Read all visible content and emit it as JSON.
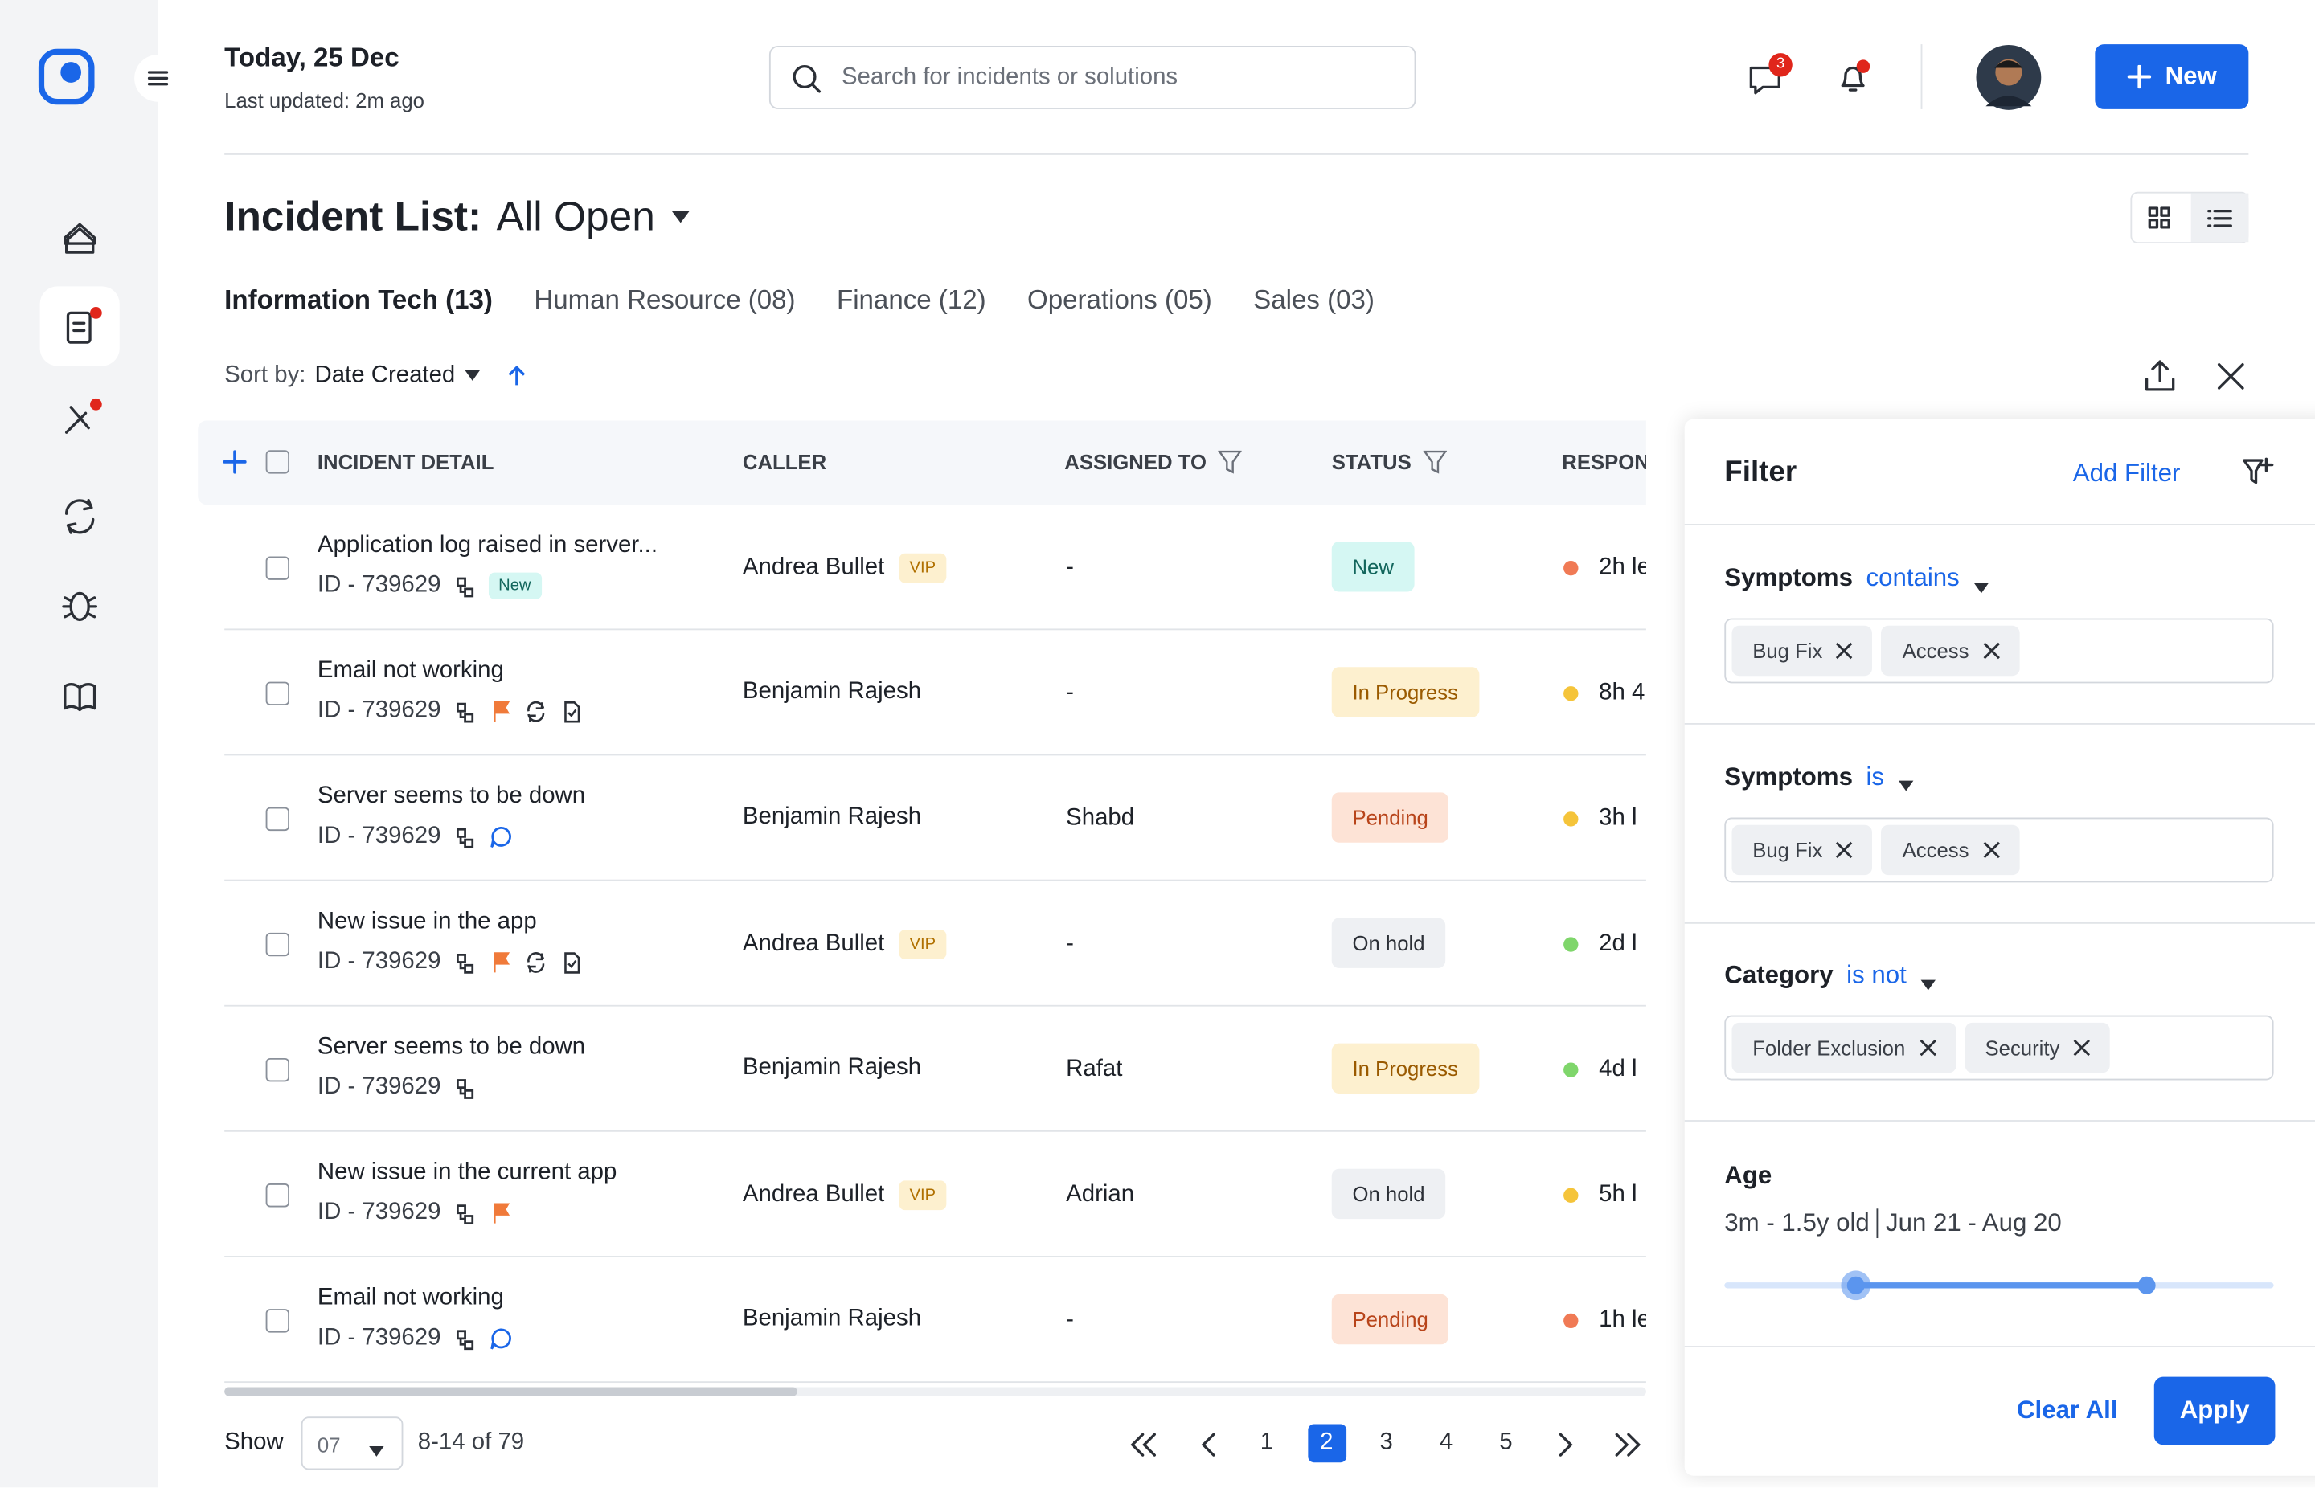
{
  "header": {
    "date": "Today, 25 Dec",
    "updated": "Last updated: 2m ago",
    "search_placeholder": "Search for incidents or solutions",
    "messages_badge": 3,
    "new_button": "New"
  },
  "title": {
    "label": "Incident List:",
    "view": "All Open"
  },
  "tabs": [
    "Information Tech (13)",
    "Human Resource (08)",
    "Finance (12)",
    "Operations (05)",
    "Sales (03)"
  ],
  "active_tab": 0,
  "sort": {
    "label": "Sort by:",
    "value": "Date Created"
  },
  "table": {
    "columns": [
      "INCIDENT DETAIL",
      "CALLER",
      "ASSIGNED TO",
      "STATUS",
      "RESPON"
    ],
    "rows": [
      {
        "title": "Application log raised in server...",
        "id": "ID - 739629",
        "icons": [
          "link"
        ],
        "badge": "New",
        "caller": "Andrea Bullet",
        "vip": "VIP",
        "assigned": "-",
        "status": "New",
        "status_bg": "#d5f7f3",
        "status_fg": "#12665c",
        "dot": "#f07a55",
        "response": "2h le"
      },
      {
        "title": "Email not working",
        "id": "ID - 739629",
        "icons": [
          "link",
          "flag",
          "sync",
          "doc"
        ],
        "caller": "Benjamin Rajesh",
        "assigned": "-",
        "status": "In Progress",
        "status_bg": "#fdf0cf",
        "status_fg": "#9a5a00",
        "dot": "#f5c43a",
        "response": "8h 4"
      },
      {
        "title": "Server seems to be down",
        "id": "ID - 739629",
        "icons": [
          "link",
          "chat"
        ],
        "caller": "Benjamin Rajesh",
        "assigned": "Shabd",
        "status": "Pending",
        "status_bg": "#fde3d6",
        "status_fg": "#b8441a",
        "dot": "#f5c43a",
        "response": "3h l"
      },
      {
        "title": "New issue in the app",
        "id": "ID - 739629",
        "icons": [
          "link",
          "flag",
          "sync",
          "doc"
        ],
        "caller": "Andrea Bullet",
        "vip": "VIP",
        "assigned": "-",
        "status": "On hold",
        "status_bg": "#eef0f3",
        "status_fg": "#2b2f36",
        "dot": "#7fd66b",
        "response": "2d l"
      },
      {
        "title": "Server seems to be down",
        "id": "ID - 739629",
        "icons": [
          "link"
        ],
        "caller": "Benjamin Rajesh",
        "assigned": "Rafat",
        "status": "In Progress",
        "status_bg": "#fdf0cf",
        "status_fg": "#9a5a00",
        "dot": "#7fd66b",
        "response": "4d l"
      },
      {
        "title": "New issue in the current app",
        "id": "ID - 739629",
        "icons": [
          "link",
          "flag"
        ],
        "caller": "Andrea Bullet",
        "vip": "VIP",
        "assigned": "Adrian",
        "status": "On hold",
        "status_bg": "#eef0f3",
        "status_fg": "#2b2f36",
        "dot": "#f5c43a",
        "response": "5h l"
      },
      {
        "title": "Email not working",
        "id": "ID - 739629",
        "icons": [
          "link",
          "chat"
        ],
        "caller": "Benjamin Rajesh",
        "assigned": "-",
        "status": "Pending",
        "status_bg": "#fde3d6",
        "status_fg": "#b8441a",
        "dot": "#f07a55",
        "response": "1h le"
      }
    ]
  },
  "pagination": {
    "show": "Show",
    "page_size": "07",
    "range": "8-14 of 79",
    "pages": [
      1,
      2,
      3,
      4,
      5
    ],
    "current": 2
  },
  "filter": {
    "title": "Filter",
    "add": "Add Filter",
    "groups": [
      {
        "label": "Symptoms",
        "operator": "contains",
        "chips": [
          "Bug Fix",
          "Access"
        ]
      },
      {
        "label": "Symptoms",
        "operator": "is",
        "chips": [
          "Bug Fix",
          "Access"
        ]
      },
      {
        "label": "Category",
        "operator": "is not",
        "chips": [
          "Folder Exclusion",
          "Security"
        ]
      }
    ],
    "age": {
      "label": "Age",
      "range": "3m - 1.5y old",
      "dates": "Jun 21 - Aug 20"
    },
    "clear": "Clear All",
    "apply": "Apply"
  }
}
